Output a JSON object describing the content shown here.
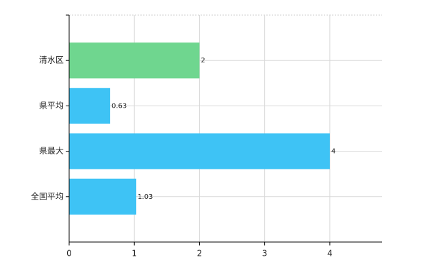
{
  "chart_data": {
    "type": "bar",
    "orientation": "horizontal",
    "categories": [
      "清水区",
      "県平均",
      "県最大",
      "全国平均"
    ],
    "values": [
      2,
      0.63,
      4,
      1.03
    ],
    "colors": [
      "#6fd68f",
      "#3ec3f5",
      "#3ec3f5",
      "#3ec3f5"
    ],
    "xlim": [
      0,
      4.8
    ],
    "xticks": [
      0,
      1,
      2,
      3,
      4
    ],
    "grid": true
  }
}
